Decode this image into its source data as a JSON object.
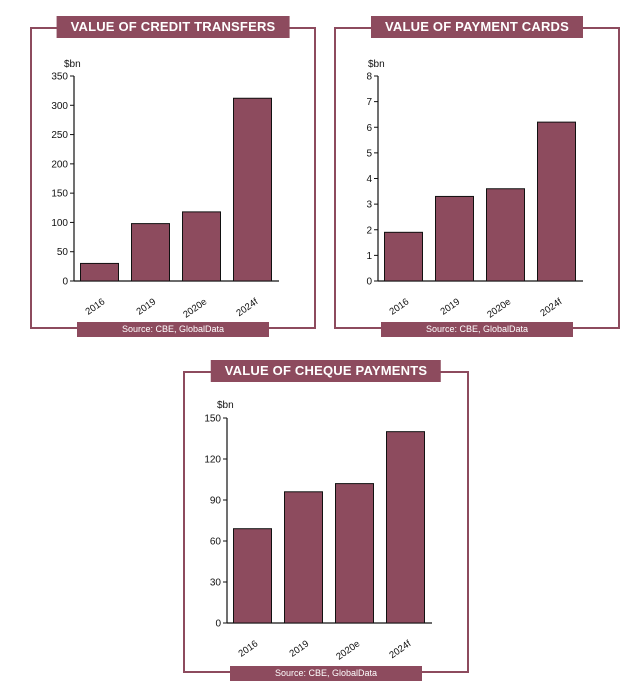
{
  "chart_data": [
    {
      "type": "bar",
      "title": "VALUE OF CREDIT TRANSFERS",
      "unit_label": "$bn",
      "categories": [
        "2016",
        "2019",
        "2020e",
        "2024f"
      ],
      "values": [
        30,
        98,
        118,
        312
      ],
      "ylim": [
        0,
        350
      ],
      "yticks": [
        0,
        50,
        100,
        150,
        200,
        250,
        300,
        350
      ],
      "source": "Source: CBE, GlobalData",
      "bar_color": "#8d4b5e"
    },
    {
      "type": "bar",
      "title": "VALUE OF PAYMENT CARDS",
      "unit_label": "$bn",
      "categories": [
        "2016",
        "2019",
        "2020e",
        "2024f"
      ],
      "values": [
        1.9,
        3.3,
        3.6,
        6.2
      ],
      "ylim": [
        0,
        8
      ],
      "yticks": [
        0,
        1,
        2,
        3,
        4,
        5,
        6,
        7,
        8
      ],
      "source": "Source: CBE, GlobalData",
      "bar_color": "#8d4b5e"
    },
    {
      "type": "bar",
      "title": "VALUE OF CHEQUE PAYMENTS",
      "unit_label": "$bn",
      "categories": [
        "2016",
        "2019",
        "2020e",
        "2024f"
      ],
      "values": [
        69,
        96,
        102,
        140
      ],
      "ylim": [
        0,
        150
      ],
      "yticks": [
        0,
        30,
        60,
        90,
        120,
        150
      ],
      "source": "Source: CBE, GlobalData",
      "bar_color": "#8d4b5e"
    }
  ]
}
